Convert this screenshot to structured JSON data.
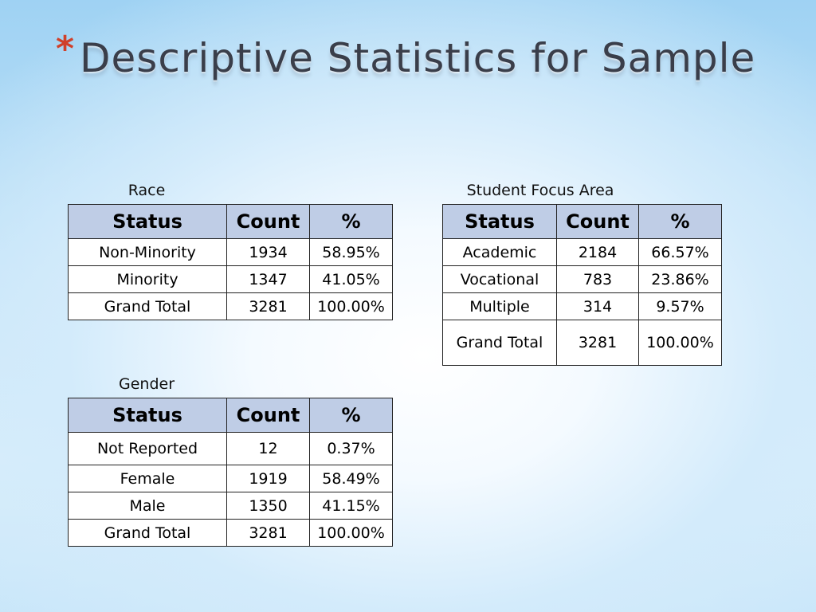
{
  "slide": {
    "bullet": "*",
    "title": "Descriptive Statistics for Sample"
  },
  "tables": {
    "race": {
      "caption": "Race",
      "headers": [
        "Status",
        "Count",
        "%"
      ],
      "rows": [
        [
          "Non-Minority",
          "1934",
          "58.95%"
        ],
        [
          "Minority",
          "1347",
          "41.05%"
        ],
        [
          "Grand Total",
          "3281",
          "100.00%"
        ]
      ]
    },
    "focus": {
      "caption": "Student Focus Area",
      "headers": [
        "Status",
        "Count",
        "%"
      ],
      "rows": [
        [
          "Academic",
          "2184",
          "66.57%"
        ],
        [
          "Vocational",
          "783",
          "23.86%"
        ],
        [
          "Multiple",
          "314",
          "9.57%"
        ],
        [
          "Grand Total",
          "3281",
          "100.00%"
        ]
      ]
    },
    "gender": {
      "caption": "Gender",
      "headers": [
        "Status",
        "Count",
        "%"
      ],
      "rows": [
        [
          "Not Reported",
          "12",
          "0.37%"
        ],
        [
          "Female",
          "1919",
          "58.49%"
        ],
        [
          "Male",
          "1350",
          "41.15%"
        ],
        [
          "Grand Total",
          "3281",
          "100.00%"
        ]
      ]
    }
  },
  "colors": {
    "header_fill": "#bfcde6",
    "bullet": "#d0402a",
    "title_text": "#3a3e4a"
  }
}
